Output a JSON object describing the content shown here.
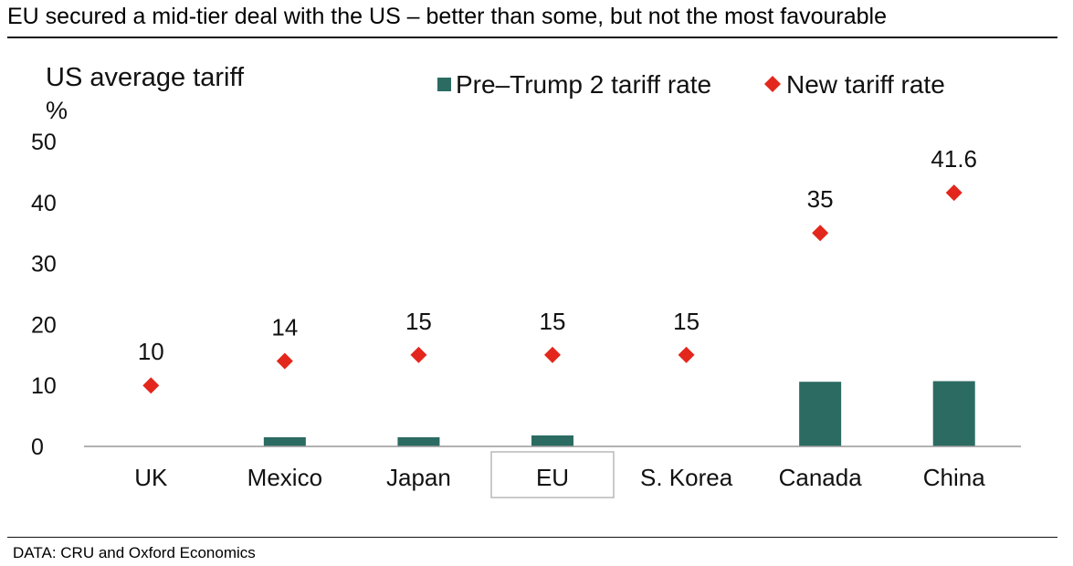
{
  "title": "EU secured a mid-tier deal with the US – better than some, but not the most favourable",
  "source": "DATA: CRU and Oxford Economics",
  "colors": {
    "bar": "#2b6b62",
    "marker": "#e3271c",
    "axis": "#999999",
    "text": "#111111"
  },
  "chart_data": {
    "type": "bar",
    "title": "EU secured a mid-tier deal with the US – better than some, but not the most favourable",
    "ylabel": "US average tariff",
    "yunit": "%",
    "xlabel": "",
    "ylim": [
      0,
      50
    ],
    "yticks": [
      0,
      10,
      20,
      30,
      40,
      50
    ],
    "grid": false,
    "legend_position": "top",
    "categories": [
      "UK",
      "Mexico",
      "Japan",
      "EU",
      "S. Korea",
      "Canada",
      "China"
    ],
    "highlight_category": "EU",
    "series": [
      {
        "name": "Pre–Trump 2 tariff rate",
        "kind": "bar",
        "values": [
          0.0,
          1.5,
          1.5,
          1.8,
          0.0,
          10.6,
          10.7
        ]
      },
      {
        "name": "New tariff rate",
        "kind": "marker",
        "values": [
          10,
          14,
          15,
          15,
          15,
          35,
          41.6
        ],
        "labels": [
          "10",
          "14",
          "15",
          "15",
          "15",
          "35",
          "41.6"
        ]
      }
    ]
  }
}
